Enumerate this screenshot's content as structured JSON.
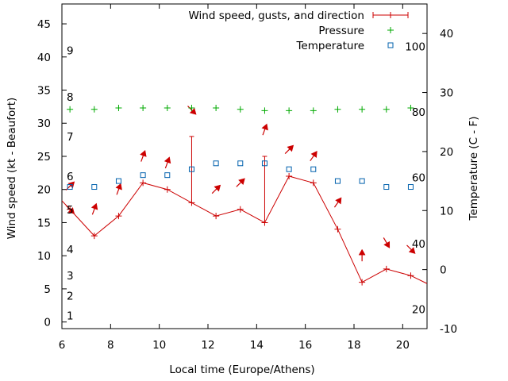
{
  "chart_data": {
    "type": "line",
    "title": "",
    "xlabel": "Local time (Europe/Athens)",
    "ylabel": "Wind speed (kt - Beaufort)",
    "y2label": "Temperature (C - F)",
    "xlim": [
      6,
      21
    ],
    "ylim": [
      -1,
      48
    ],
    "y2lim": [
      -10,
      45
    ],
    "x_ticks": [
      6,
      8,
      10,
      12,
      14,
      16,
      18,
      20
    ],
    "y_ticks": [
      0,
      5,
      10,
      15,
      20,
      25,
      30,
      35,
      40,
      45
    ],
    "y2_ticks": [
      -10,
      0,
      10,
      20,
      30,
      40
    ],
    "beaufort_labels": [
      {
        "label": "1",
        "kt": 1
      },
      {
        "label": "2",
        "kt": 4
      },
      {
        "label": "3",
        "kt": 7
      },
      {
        "label": "4",
        "kt": 11
      },
      {
        "label": "5",
        "kt": 17
      },
      {
        "label": "6",
        "kt": 22
      },
      {
        "label": "7",
        "kt": 28
      },
      {
        "label": "8",
        "kt": 34
      },
      {
        "label": "9",
        "kt": 41
      }
    ],
    "fahrenheit_labels": [
      {
        "label": "20",
        "celsius": -6.7
      },
      {
        "label": "40",
        "celsius": 4.4
      },
      {
        "label": "60",
        "celsius": 15.6
      },
      {
        "label": "80",
        "celsius": 26.7
      },
      {
        "label": "100",
        "celsius": 37.8
      }
    ],
    "legend": [
      {
        "name": "Wind speed, gusts, and direction",
        "color": "#cc0000"
      },
      {
        "name": "Pressure",
        "color": "#00aa00"
      },
      {
        "name": "Temperature",
        "color": "#0060ad"
      }
    ],
    "series": [
      {
        "name": "Wind speed, gusts, and direction",
        "x": [
          6,
          6.33,
          7.33,
          8.33,
          9.33,
          10.33,
          11.33,
          12.33,
          13.33,
          14.33,
          15.33,
          16.33,
          17.33,
          18.33,
          19.33,
          20.33,
          21
        ],
        "values": [
          18.3,
          17,
          13,
          16,
          21,
          20,
          18,
          16,
          17,
          15,
          22,
          21,
          14,
          6,
          8,
          7,
          5.8
        ],
        "gusts": [
          {
            "x": 11.33,
            "value": 28
          },
          {
            "x": 14.33,
            "value": 25
          }
        ],
        "directions": [
          {
            "x": 6.33,
            "y": 20.5,
            "deg": 225
          },
          {
            "x": 6.33,
            "y": 17,
            "deg": 315
          },
          {
            "x": 7.33,
            "y": 17,
            "deg": 200
          },
          {
            "x": 8.33,
            "y": 20,
            "deg": 200
          },
          {
            "x": 9.33,
            "y": 25,
            "deg": 200
          },
          {
            "x": 10.33,
            "y": 24,
            "deg": 200
          },
          {
            "x": 11.33,
            "y": 32,
            "deg": 315
          },
          {
            "x": 12.33,
            "y": 20,
            "deg": 225
          },
          {
            "x": 13.33,
            "y": 21,
            "deg": 225
          },
          {
            "x": 14.33,
            "y": 29,
            "deg": 200
          },
          {
            "x": 15.33,
            "y": 26,
            "deg": 225
          },
          {
            "x": 16.33,
            "y": 25,
            "deg": 215
          },
          {
            "x": 17.33,
            "y": 18,
            "deg": 215
          },
          {
            "x": 18.33,
            "y": 10,
            "deg": 180
          },
          {
            "x": 19.33,
            "y": 12,
            "deg": 330
          },
          {
            "x": 20.33,
            "y": 11,
            "deg": 315
          }
        ]
      },
      {
        "name": "Pressure",
        "x": [
          6.33,
          7.33,
          8.33,
          9.33,
          10.33,
          11.33,
          12.33,
          13.33,
          14.33,
          15.33,
          16.33,
          17.33,
          18.33,
          19.33,
          20.33
        ],
        "values": [
          32.1,
          32.1,
          32.3,
          32.3,
          32.3,
          32.3,
          32.3,
          32.1,
          31.9,
          31.9,
          31.9,
          32.1,
          32.1,
          32.1,
          32.3
        ]
      },
      {
        "name": "Temperature",
        "axis": "y2",
        "x": [
          6.33,
          7.33,
          8.33,
          9.33,
          10.33,
          11.33,
          12.33,
          13.33,
          14.33,
          15.33,
          16.33,
          17.33,
          18.33,
          19.33,
          20.33
        ],
        "values": [
          14,
          14,
          15,
          16,
          16,
          17,
          18,
          18,
          18,
          17,
          17,
          15,
          15,
          14,
          14
        ]
      }
    ]
  }
}
